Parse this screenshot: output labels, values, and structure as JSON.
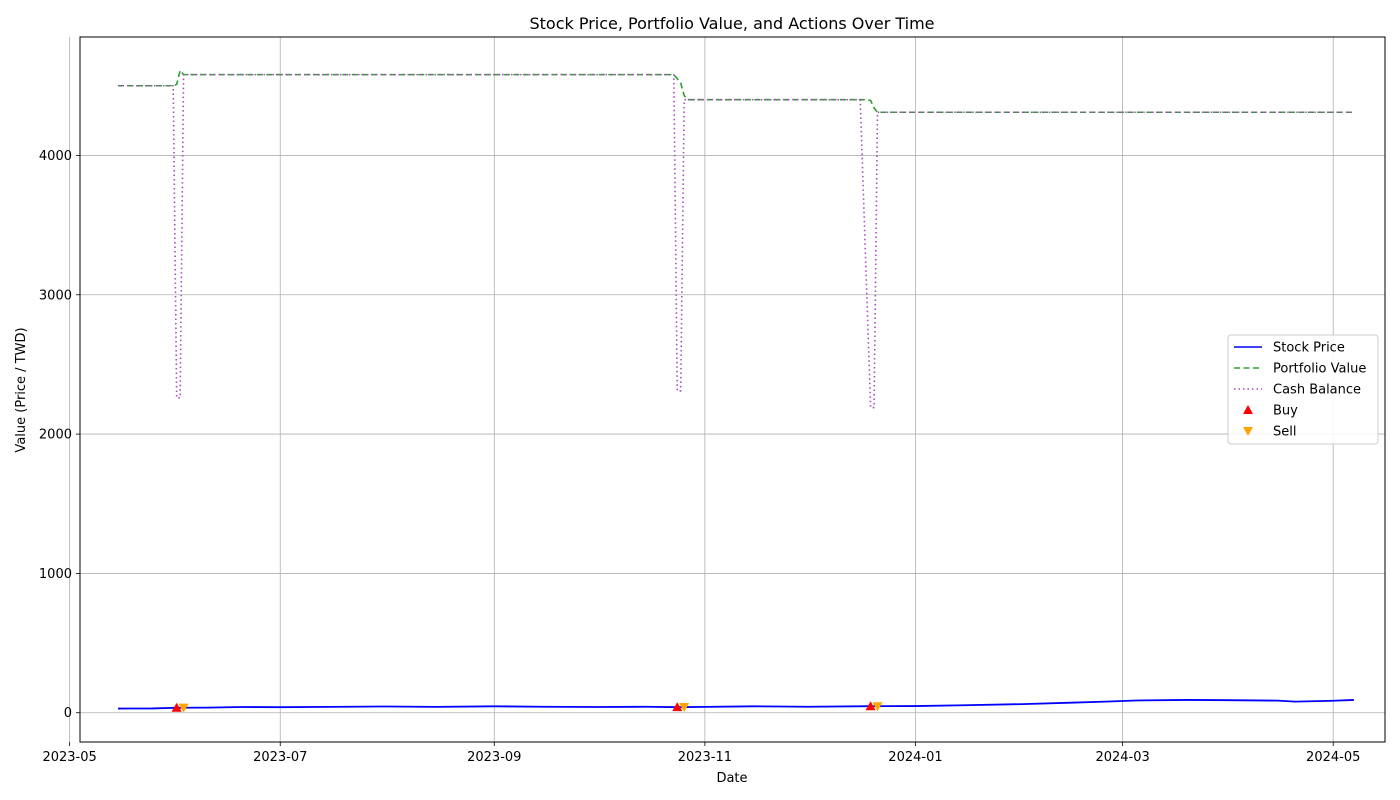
{
  "chart_data": {
    "type": "line",
    "title": "Stock Price, Portfolio Value, and Actions Over Time",
    "xlabel": "Date",
    "ylabel": "Value (Price / TWD)",
    "xlim": [
      "2023-05-04",
      "2024-05-16"
    ],
    "ylim": [
      -210,
      4850
    ],
    "x_ticks": [
      {
        "date": "2023-05-01",
        "label": "2023-05"
      },
      {
        "date": "2023-07-01",
        "label": "2023-07"
      },
      {
        "date": "2023-09-01",
        "label": "2023-09"
      },
      {
        "date": "2023-11-01",
        "label": "2023-11"
      },
      {
        "date": "2024-01-01",
        "label": "2024-01"
      },
      {
        "date": "2024-03-01",
        "label": "2024-03"
      },
      {
        "date": "2024-05-01",
        "label": "2024-05"
      }
    ],
    "y_ticks": [
      {
        "value": 0,
        "label": "0"
      },
      {
        "value": 1000,
        "label": "1000"
      },
      {
        "value": 2000,
        "label": "2000"
      },
      {
        "value": 3000,
        "label": "3000"
      },
      {
        "value": 4000,
        "label": "4000"
      }
    ],
    "grid": true,
    "legend_position": "center-right",
    "series": [
      {
        "name": "Stock Price",
        "color": "#0000ff",
        "style": "solid",
        "points": [
          [
            "2023-05-15",
            30
          ],
          [
            "2023-05-25",
            31
          ],
          [
            "2023-06-01",
            36
          ],
          [
            "2023-06-10",
            37
          ],
          [
            "2023-06-20",
            41
          ],
          [
            "2023-07-01",
            40
          ],
          [
            "2023-07-15",
            42
          ],
          [
            "2023-08-01",
            45
          ],
          [
            "2023-08-15",
            42
          ],
          [
            "2023-09-01",
            46
          ],
          [
            "2023-09-15",
            43
          ],
          [
            "2023-10-01",
            41
          ],
          [
            "2023-10-15",
            43
          ],
          [
            "2023-10-24",
            40
          ],
          [
            "2023-11-01",
            42
          ],
          [
            "2023-11-15",
            46
          ],
          [
            "2023-12-01",
            43
          ],
          [
            "2023-12-19",
            47
          ],
          [
            "2024-01-01",
            48
          ],
          [
            "2024-01-15",
            54
          ],
          [
            "2024-02-01",
            62
          ],
          [
            "2024-02-15",
            72
          ],
          [
            "2024-02-25",
            80
          ],
          [
            "2024-03-05",
            88
          ],
          [
            "2024-03-20",
            92
          ],
          [
            "2024-04-01",
            90
          ],
          [
            "2024-04-15",
            87
          ],
          [
            "2024-04-20",
            80
          ],
          [
            "2024-05-01",
            86
          ],
          [
            "2024-05-07",
            92
          ]
        ]
      },
      {
        "name": "Portfolio Value",
        "color": "#2ca02c",
        "style": "dashed",
        "points": [
          [
            "2023-05-15",
            4500
          ],
          [
            "2023-05-31",
            4500
          ],
          [
            "2023-06-01",
            4510
          ],
          [
            "2023-06-02",
            4610
          ],
          [
            "2023-06-03",
            4580
          ],
          [
            "2023-10-23",
            4580
          ],
          [
            "2023-10-25",
            4520
          ],
          [
            "2023-10-26",
            4430
          ],
          [
            "2023-10-27",
            4400
          ],
          [
            "2023-12-17",
            4400
          ],
          [
            "2023-12-19",
            4395
          ],
          [
            "2023-12-20",
            4340
          ],
          [
            "2023-12-21",
            4310
          ],
          [
            "2024-05-07",
            4310
          ]
        ]
      },
      {
        "name": "Cash Balance",
        "color": "#ab49c0",
        "style": "dotted",
        "points": [
          [
            "2023-05-15",
            4500
          ],
          [
            "2023-05-31",
            4500
          ],
          [
            "2023-06-01",
            2260
          ],
          [
            "2023-06-02",
            2260
          ],
          [
            "2023-06-03",
            4580
          ],
          [
            "2023-10-23",
            4580
          ],
          [
            "2023-10-24",
            2310
          ],
          [
            "2023-10-25",
            2310
          ],
          [
            "2023-10-26",
            4400
          ],
          [
            "2023-12-16",
            4400
          ],
          [
            "2023-12-19",
            2190
          ],
          [
            "2023-12-20",
            2190
          ],
          [
            "2023-12-21",
            4310
          ],
          [
            "2024-05-07",
            4310
          ]
        ]
      }
    ],
    "markers": [
      {
        "name": "Buy",
        "color": "#ff0000",
        "shape": "triangle-up",
        "points": [
          [
            "2023-06-01",
            36
          ],
          [
            "2023-10-24",
            40
          ],
          [
            "2023-12-19",
            47
          ]
        ]
      },
      {
        "name": "Sell",
        "color": "#ffa500",
        "shape": "triangle-down",
        "points": [
          [
            "2023-06-03",
            37
          ],
          [
            "2023-10-26",
            41
          ],
          [
            "2023-12-21",
            47
          ]
        ]
      }
    ]
  }
}
